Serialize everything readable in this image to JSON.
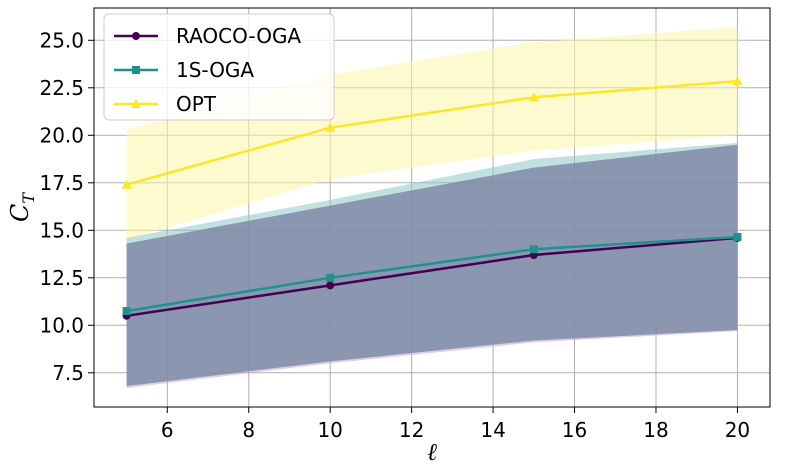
{
  "chart_data": {
    "type": "line",
    "x": [
      5,
      10,
      15,
      20
    ],
    "xlabel": "ℓ",
    "ylabel": "C",
    "ylabel_sub": "T",
    "xlim": [
      4.2,
      20.8
    ],
    "ylim": [
      5.7,
      26.7
    ],
    "xticks": [
      6,
      8,
      10,
      12,
      14,
      16,
      18,
      20
    ],
    "xtick_labels": [
      "6",
      "8",
      "10",
      "12",
      "14",
      "16",
      "18",
      "20"
    ],
    "yticks": [
      7.5,
      10.0,
      12.5,
      15.0,
      17.5,
      20.0,
      22.5,
      25.0
    ],
    "ytick_labels": [
      "7.5",
      "10.0",
      "12.5",
      "15.0",
      "17.5",
      "20.0",
      "22.5",
      "25.0"
    ],
    "grid": true,
    "legend_position": "top-left",
    "series": [
      {
        "name": "RAOCO-OGA",
        "values": [
          10.5,
          12.1,
          13.7,
          14.6
        ],
        "band_low": [
          6.7,
          8.0,
          9.1,
          9.7
        ],
        "band_high": [
          14.3,
          16.3,
          18.3,
          19.5
        ],
        "color": "#440154",
        "band_color": "#c7a2cf",
        "marker": "circle"
      },
      {
        "name": "1S-OGA",
        "values": [
          10.75,
          12.5,
          14.0,
          14.65
        ],
        "band_low": [
          6.8,
          8.1,
          9.2,
          9.75
        ],
        "band_high": [
          14.6,
          16.6,
          18.75,
          19.6
        ],
        "color": "#21918c",
        "band_color": "#8cc8c5",
        "marker": "square"
      },
      {
        "name": "OPT",
        "values": [
          17.4,
          20.4,
          22.0,
          22.85
        ],
        "band_low": [
          14.5,
          17.7,
          19.2,
          20.0
        ],
        "band_high": [
          20.3,
          23.2,
          24.9,
          25.7
        ],
        "color": "#fde725",
        "band_color": "#fef5a8",
        "marker": "triangle"
      }
    ]
  }
}
